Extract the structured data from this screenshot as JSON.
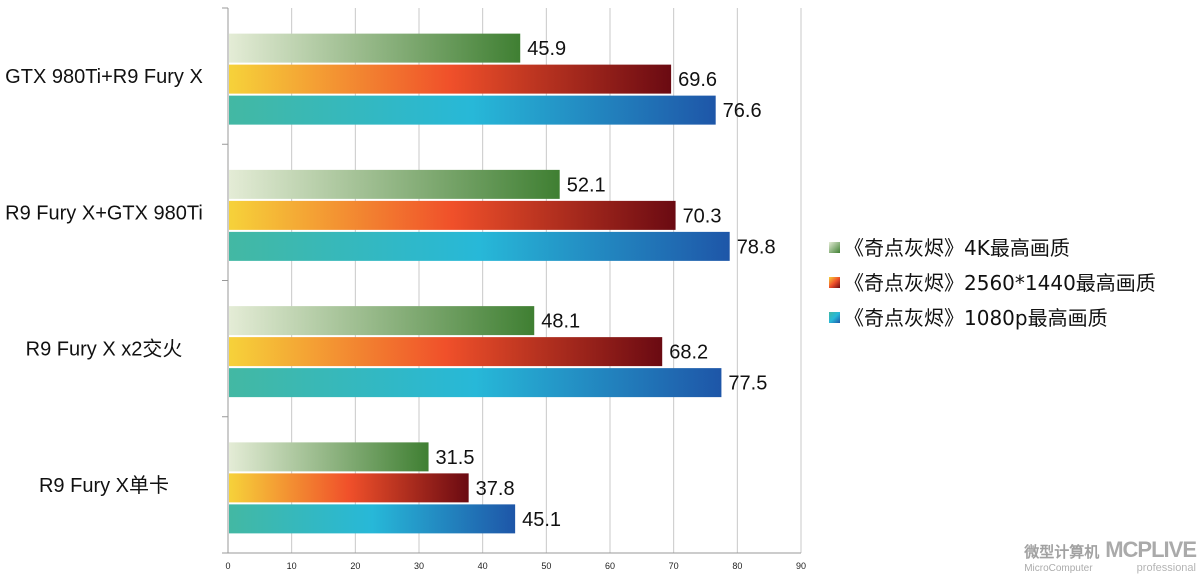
{
  "chart_data": {
    "type": "bar",
    "orientation": "horizontal",
    "title": "",
    "xlabel": "",
    "ylabel": "",
    "xlim": [
      0,
      90
    ],
    "xticks": [
      0,
      10,
      20,
      30,
      40,
      50,
      60,
      70,
      80,
      90
    ],
    "grid": true,
    "legend_position": "right",
    "categories": [
      "GTX 980Ti+R9  Fury X",
      "R9 Fury X+GTX 980Ti",
      "R9 Fury X x2交火",
      "R9 Fury X单卡"
    ],
    "series": [
      {
        "name": "《奇点灰烬》4K最高画质",
        "values": [
          45.9,
          52.1,
          48.1,
          31.5
        ],
        "color_start": "#e4ecd6",
        "color_end": "#3f7f32"
      },
      {
        "name": "《奇点灰烬》2560*1440最高画质",
        "values": [
          69.6,
          70.3,
          68.2,
          37.8
        ],
        "color_start": "#f6d23a",
        "color_mid": "#f0502a",
        "color_end": "#6a0a12"
      },
      {
        "name": "《奇点灰烬》1080p最高画质",
        "values": [
          76.6,
          78.8,
          77.5,
          45.1
        ],
        "color_start": "#43b8a3",
        "color_mid": "#27b8d8",
        "color_end": "#1e56a8"
      }
    ]
  },
  "watermark": {
    "cn": "微型计算机",
    "en": "MicroComputer",
    "logo": "MCPLIVE",
    "sub": "professional"
  }
}
